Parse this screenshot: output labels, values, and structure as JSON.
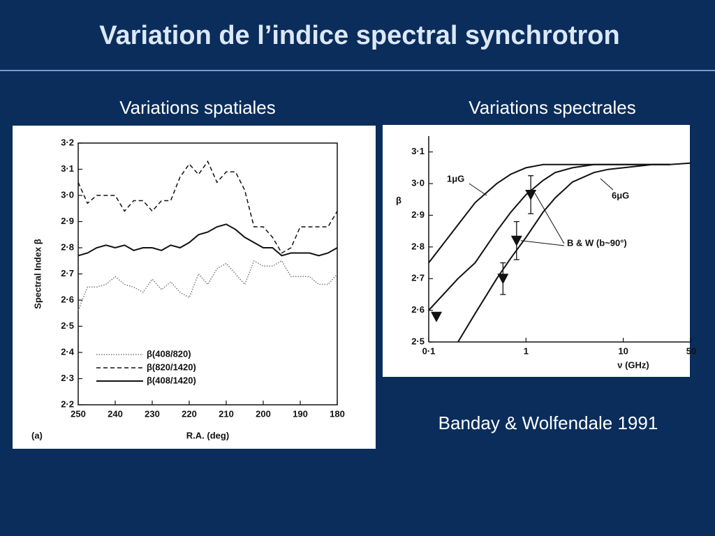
{
  "title": "Variation de l’indice spectral synchrotron",
  "citation": "Banday & Wolfendale 1991",
  "chart_data": [
    {
      "type": "line",
      "title": "Variations spatiales",
      "xlabel": "R.A. (deg)",
      "ylabel": "Spectral Index β",
      "panel": "(a)",
      "x": [
        250,
        247.5,
        245,
        242.5,
        240,
        237.5,
        235,
        232.5,
        230,
        227.5,
        225,
        222.5,
        220,
        217.5,
        215,
        212.5,
        210,
        207.5,
        205,
        202.5,
        200,
        197.5,
        195,
        192.5,
        190,
        187.5,
        185,
        182.5,
        180
      ],
      "xlim": [
        250,
        180
      ],
      "xticks": [
        250,
        240,
        230,
        220,
        210,
        200,
        190,
        180
      ],
      "ylim": [
        2.2,
        3.2
      ],
      "yticks": [
        {
          "value": 2.2,
          "label": "2·2"
        },
        {
          "value": 2.3,
          "label": "2·3"
        },
        {
          "value": 2.4,
          "label": "2·4"
        },
        {
          "value": 2.5,
          "label": "2·5"
        },
        {
          "value": 2.6,
          "label": "2·6"
        },
        {
          "value": 2.7,
          "label": "2·7"
        },
        {
          "value": 2.8,
          "label": "2·8"
        },
        {
          "value": 2.9,
          "label": "2·9"
        },
        {
          "value": 3.0,
          "label": "3·0"
        },
        {
          "value": 3.1,
          "label": "3·1"
        },
        {
          "value": 3.2,
          "label": "3·2"
        }
      ],
      "legend": "lower-left",
      "series": [
        {
          "name": "β(408/820)",
          "color": "#777777",
          "style": "dotted",
          "values": [
            2.56,
            2.65,
            2.65,
            2.66,
            2.69,
            2.66,
            2.65,
            2.63,
            2.68,
            2.64,
            2.67,
            2.63,
            2.61,
            2.7,
            2.66,
            2.72,
            2.74,
            2.7,
            2.66,
            2.75,
            2.73,
            2.73,
            2.75,
            2.69,
            2.69,
            2.69,
            2.66,
            2.66,
            2.7
          ]
        },
        {
          "name": "β(820/1420)",
          "color": "#111111",
          "style": "dashed",
          "values": [
            3.05,
            2.97,
            3.0,
            3.0,
            3.0,
            2.94,
            2.98,
            2.98,
            2.94,
            2.98,
            2.98,
            3.07,
            3.12,
            3.08,
            3.13,
            3.05,
            3.09,
            3.09,
            3.02,
            2.88,
            2.88,
            2.84,
            2.78,
            2.8,
            2.88,
            2.88,
            2.88,
            2.88,
            2.94
          ]
        },
        {
          "name": "β(408/1420)",
          "color": "#111111",
          "style": "solid",
          "values": [
            2.77,
            2.78,
            2.8,
            2.81,
            2.8,
            2.81,
            2.79,
            2.8,
            2.8,
            2.79,
            2.81,
            2.8,
            2.82,
            2.85,
            2.86,
            2.88,
            2.89,
            2.87,
            2.84,
            2.82,
            2.8,
            2.8,
            2.77,
            2.78,
            2.78,
            2.78,
            2.77,
            2.78,
            2.8
          ]
        }
      ]
    },
    {
      "type": "line",
      "title": "Variations spectrales",
      "xlabel": "ν (GHz)",
      "ylabel": "β",
      "xlog": true,
      "x": [
        0.1,
        0.2,
        0.3,
        0.5,
        0.7,
        1,
        1.5,
        2,
        3,
        5,
        7,
        10,
        20,
        30,
        50
      ],
      "xlim": [
        0.1,
        50
      ],
      "xticks": [
        {
          "value": 0.1,
          "label": "0·1"
        },
        1,
        10,
        50
      ],
      "ylim": [
        2.5,
        3.15
      ],
      "yticks": [
        {
          "value": 2.5,
          "label": "2·5"
        },
        {
          "value": 2.6,
          "label": "2·6"
        },
        {
          "value": 2.7,
          "label": "2·7"
        },
        {
          "value": 2.8,
          "label": "2·8"
        },
        {
          "value": 2.9,
          "label": "2·9"
        },
        {
          "value": 3.0,
          "label": "3·0"
        },
        {
          "value": 3.1,
          "label": "3·1"
        }
      ],
      "series": [
        {
          "name": "1μG",
          "color": "#111111",
          "style": "solid",
          "values": [
            2.75,
            2.87,
            2.94,
            3.0,
            3.03,
            3.05,
            3.06,
            3.06,
            3.06,
            3.06,
            3.06,
            3.06,
            3.06,
            3.06,
            null
          ]
        },
        {
          "color": "#111111",
          "style": "solid",
          "values": [
            2.6,
            2.7,
            2.75,
            2.85,
            2.91,
            2.965,
            3.01,
            3.035,
            3.05,
            3.06,
            3.06,
            3.06,
            3.06,
            3.06,
            null
          ]
        },
        {
          "name": "6μG",
          "color": "#111111",
          "style": "solid",
          "values": [
            null,
            2.5,
            2.59,
            2.7,
            2.765,
            2.83,
            2.91,
            2.955,
            3.005,
            3.035,
            3.045,
            3.05,
            3.06,
            3.06,
            3.065
          ]
        }
      ],
      "points": {
        "name": "B & W (b~90°)",
        "color": "#111111",
        "x": [
          0.12,
          0.58,
          0.8,
          1.12
        ],
        "values": [
          2.58,
          2.7,
          2.82,
          2.965
        ],
        "errors": [
          null,
          0.05,
          0.06,
          0.06
        ]
      }
    }
  ]
}
